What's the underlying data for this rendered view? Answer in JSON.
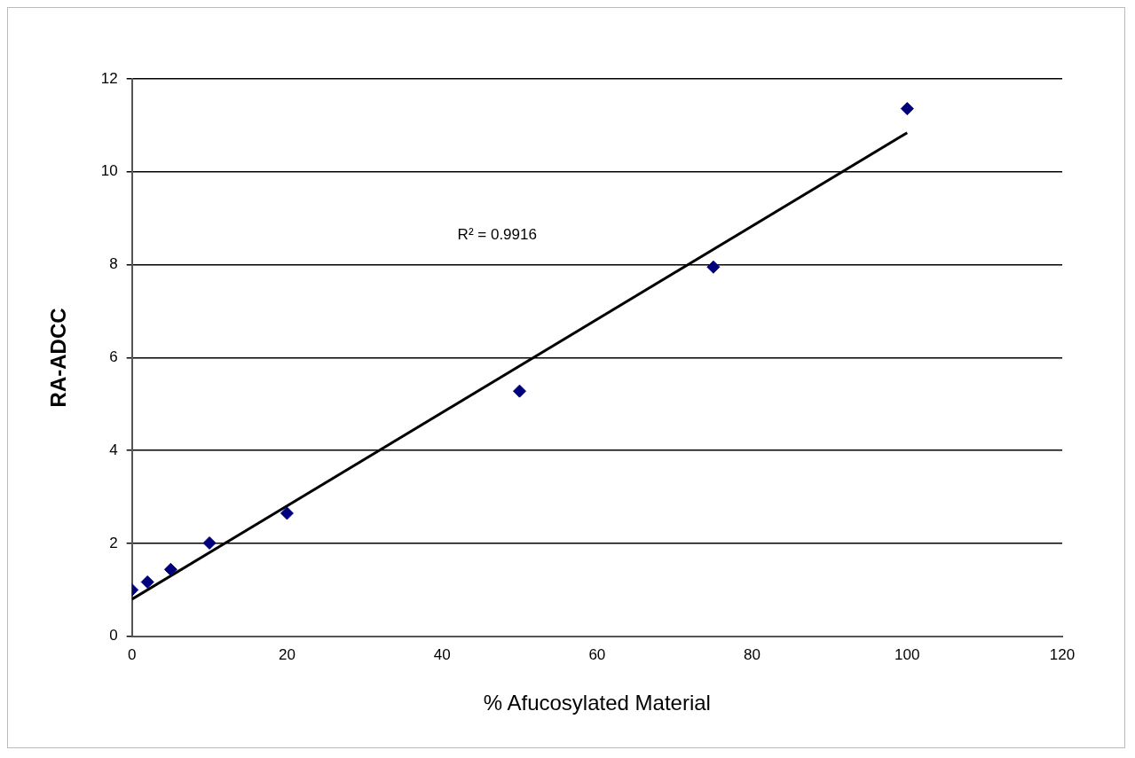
{
  "chart_data": {
    "type": "scatter",
    "xlabel": "% Afucosylated Material",
    "ylabel": "RA-ADCC",
    "xlim": [
      0,
      120
    ],
    "xticks": [
      0,
      20,
      40,
      60,
      80,
      100,
      120
    ],
    "ylim": [
      0,
      12
    ],
    "yticks": [
      0,
      2,
      4,
      6,
      8,
      10,
      12
    ],
    "grid": "y",
    "legend": false,
    "series": [
      {
        "color": "#00007f",
        "marker": "diamond",
        "x": [
          0,
          2,
          5,
          10,
          20,
          50,
          75,
          100
        ],
        "values": [
          1.0,
          1.17,
          1.44,
          2.01,
          2.65,
          5.28,
          7.95,
          11.36
        ]
      },
      {
        "type": "line",
        "marker": "none",
        "color": "#000000",
        "x": [
          0,
          100
        ],
        "values": [
          0.8,
          10.84
        ]
      }
    ],
    "annotations": [
      "R² = 0.9916"
    ]
  }
}
